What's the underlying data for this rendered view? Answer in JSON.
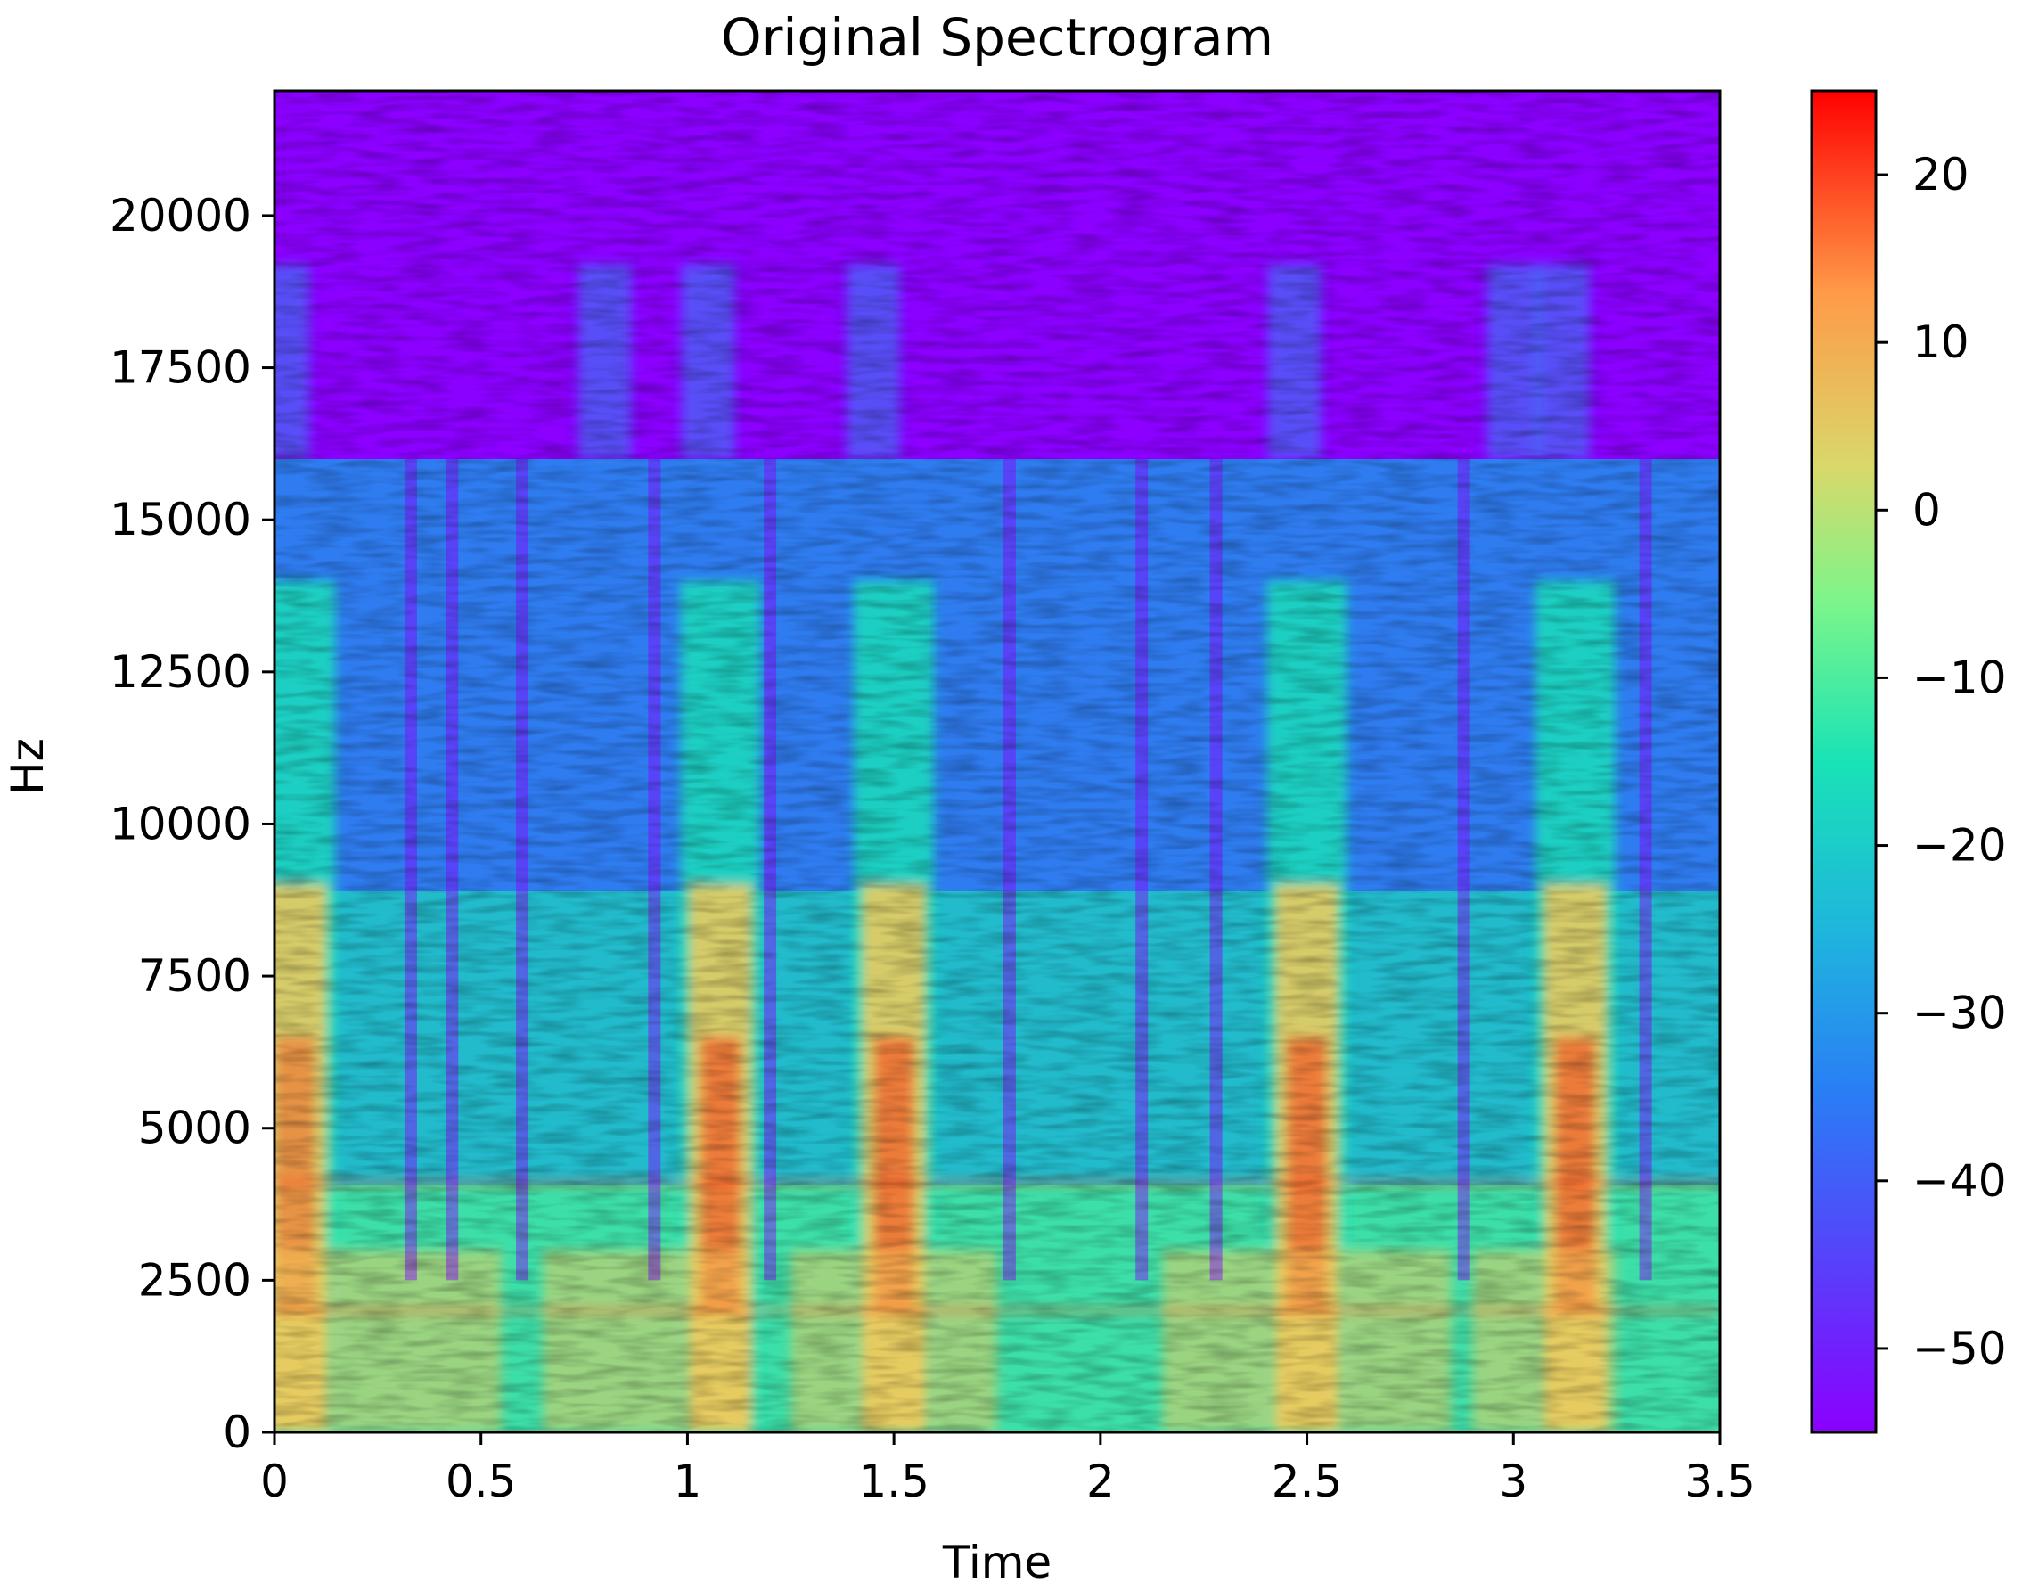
{
  "chart_data": {
    "type": "heatmap",
    "title": "Original Spectrogram",
    "xlabel": "Time",
    "ylabel": "Hz",
    "xlim": [
      0,
      3.5
    ],
    "ylim": [
      0,
      22050
    ],
    "x_ticks": [
      0,
      0.5,
      1,
      1.5,
      2,
      2.5,
      3,
      3.5
    ],
    "x_tick_labels": [
      "0",
      "0.5",
      "1",
      "1.5",
      "2",
      "2.5",
      "3",
      "3.5"
    ],
    "y_ticks": [
      0,
      2500,
      5000,
      7500,
      10000,
      12500,
      15000,
      17500,
      20000
    ],
    "y_tick_labels": [
      "0",
      "2500",
      "5000",
      "7500",
      "10000",
      "12500",
      "15000",
      "17500",
      "20000"
    ],
    "colorbar": {
      "colormap": "rainbow",
      "range": [
        -55,
        25
      ],
      "ticks": [
        20,
        10,
        0,
        -10,
        -20,
        -30,
        -40,
        -50
      ],
      "tick_labels": [
        "20",
        "10",
        "0",
        "−10",
        "−20",
        "−30",
        "−40",
        "−50"
      ]
    },
    "colors": {
      "background_band": "#8b00ff",
      "noise_floor": "#2f6bff",
      "mid_energy": "#19e3b6",
      "high_energy": "#f7c95a",
      "peak_energy": "#ff3b12"
    },
    "observations": {
      "cutoff_hz": 16000,
      "sparse_content_above_cutoff_max_hz": 19200,
      "high_energy_events_time": [
        0.05,
        1.08,
        1.5,
        2.5,
        3.15
      ],
      "harmonic_lines_hz": [
        2000,
        4100
      ]
    }
  }
}
